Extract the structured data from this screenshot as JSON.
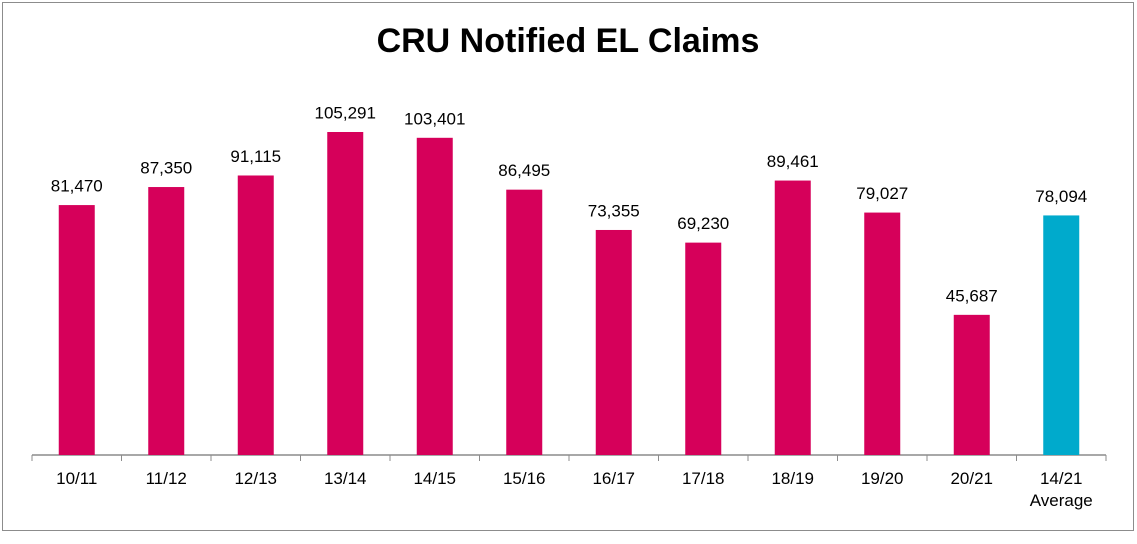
{
  "chart_data": {
    "type": "bar",
    "title": "CRU Notified EL Claims",
    "categories": [
      "10/11",
      "11/12",
      "12/13",
      "13/14",
      "14/15",
      "15/16",
      "16/17",
      "17/18",
      "18/19",
      "19/20",
      "20/21",
      "14/21\nAverage"
    ],
    "values": [
      81470,
      87350,
      91115,
      105291,
      103401,
      86495,
      73355,
      69230,
      89461,
      79027,
      45687,
      78094
    ],
    "value_labels": [
      "81,470",
      "87,350",
      "91,115",
      "105,291",
      "103,401",
      "86,495",
      "73,355",
      "69,230",
      "89,461",
      "79,027",
      "45,687",
      "78,094"
    ],
    "colors": [
      "#d6005a",
      "#d6005a",
      "#d6005a",
      "#d6005a",
      "#d6005a",
      "#d6005a",
      "#d6005a",
      "#d6005a",
      "#d6005a",
      "#d6005a",
      "#d6005a",
      "#00aacc"
    ]
  }
}
